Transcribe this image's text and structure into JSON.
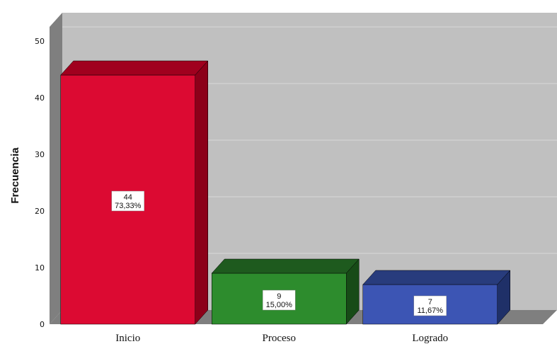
{
  "chart_data": {
    "type": "bar",
    "categories": [
      "Inicio",
      "Proceso",
      "Logrado"
    ],
    "values": [
      44,
      9,
      7
    ],
    "percent_labels": [
      "73,33%",
      "15,00%",
      "11,67%"
    ],
    "ylabel": "Frecuencia",
    "xlabel": "",
    "ylim": [
      0,
      50
    ],
    "y_ticks": [
      0,
      10,
      20,
      30,
      40,
      50
    ],
    "grid": true,
    "bar_colors": [
      "#dc0a32",
      "#2d8c2d",
      "#3c55b4"
    ],
    "bar_top_colors": [
      "#a0001e",
      "#1e5a1e",
      "#283c7d"
    ],
    "bar_side_colors": [
      "#8c0019",
      "#174b17",
      "#1f3068"
    ],
    "plot_background": "#c0c0c0"
  }
}
